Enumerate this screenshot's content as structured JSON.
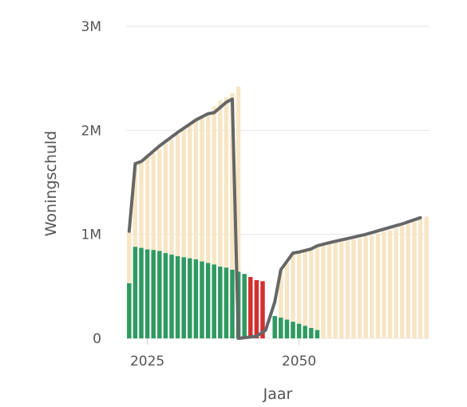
{
  "chart_data": {
    "type": "bar",
    "xlabel": "Jaar",
    "ylabel": "Woningschuld",
    "ylim": [
      0,
      3000000
    ],
    "xlim": [
      2021.5,
      2071.5
    ],
    "y_ticks": [
      {
        "value": 0,
        "label": "0"
      },
      {
        "value": 1000000,
        "label": "1M"
      },
      {
        "value": 2000000,
        "label": "2M"
      },
      {
        "value": 3000000,
        "label": "3M"
      }
    ],
    "x_ticks": [
      {
        "value": 2025,
        "label": "2025"
      },
      {
        "value": 2050,
        "label": "2050"
      }
    ],
    "grid": true,
    "legend": "none",
    "colors": {
      "background_bar": "#f7e6c6",
      "green": "#2e9a62",
      "red": "#d32f2f",
      "line": "#666666",
      "grid": "#e6e6e6"
    },
    "years": [
      2022,
      2023,
      2024,
      2025,
      2026,
      2027,
      2028,
      2029,
      2030,
      2031,
      2032,
      2033,
      2034,
      2035,
      2036,
      2037,
      2038,
      2039,
      2040,
      2041,
      2042,
      2043,
      2044,
      2045,
      2046,
      2047,
      2048,
      2049,
      2050,
      2051,
      2052,
      2053,
      2054,
      2055,
      2056,
      2057,
      2058,
      2059,
      2060,
      2061,
      2062,
      2063,
      2064,
      2065,
      2066,
      2067,
      2068,
      2069,
      2070,
      2071
    ],
    "series": [
      {
        "role": "background",
        "values": [
          1030000,
          1680000,
          1700000,
          1740000,
          1780000,
          1820000,
          1870000,
          1910000,
          1960000,
          2000000,
          2050000,
          2090000,
          2140000,
          2170000,
          2230000,
          2290000,
          2320000,
          2360000,
          2420000,
          0,
          0,
          0,
          0,
          0,
          0,
          650000,
          720000,
          820000,
          830000,
          840000,
          850000,
          880000,
          900000,
          910000,
          920000,
          930000,
          940000,
          950000,
          960000,
          980000,
          990000,
          1010000,
          1030000,
          1040000,
          1060000,
          1080000,
          1100000,
          1120000,
          1150000,
          1170000
        ]
      },
      {
        "role": "green",
        "values": [
          530000,
          880000,
          870000,
          855000,
          850000,
          840000,
          820000,
          805000,
          790000,
          780000,
          770000,
          760000,
          740000,
          725000,
          710000,
          690000,
          680000,
          660000,
          640000,
          620000,
          0,
          0,
          0,
          0,
          215000,
          200000,
          180000,
          160000,
          140000,
          120000,
          100000,
          80000,
          0,
          0,
          0,
          0,
          0,
          0,
          0,
          0,
          0,
          0,
          0,
          0,
          0,
          0,
          0,
          0,
          0,
          0
        ]
      },
      {
        "role": "red",
        "values": [
          0,
          0,
          0,
          0,
          0,
          0,
          0,
          0,
          0,
          0,
          0,
          0,
          0,
          0,
          0,
          0,
          0,
          0,
          0,
          0,
          590000,
          560000,
          550000,
          0,
          0,
          0,
          0,
          0,
          0,
          0,
          0,
          0,
          0,
          0,
          0,
          0,
          0,
          0,
          0,
          0,
          0,
          0,
          0,
          0,
          0,
          0,
          0,
          0,
          0,
          0
        ]
      }
    ],
    "line": {
      "points": [
        [
          2022.0,
          1030000
        ],
        [
          2023.0,
          1680000
        ],
        [
          2024.0,
          1700000
        ],
        [
          2027.0,
          1850000
        ],
        [
          2030.0,
          1980000
        ],
        [
          2033.0,
          2100000
        ],
        [
          2035.0,
          2160000
        ],
        [
          2036.0,
          2170000
        ],
        [
          2037.0,
          2220000
        ],
        [
          2038.0,
          2270000
        ],
        [
          2039.0,
          2300000
        ],
        [
          2040.0,
          0
        ],
        [
          2043.0,
          20000
        ],
        [
          2044.5,
          80000
        ],
        [
          2046.0,
          350000
        ],
        [
          2047.0,
          660000
        ],
        [
          2049.0,
          820000
        ],
        [
          2050.0,
          830000
        ],
        [
          2052.0,
          860000
        ],
        [
          2053.0,
          890000
        ],
        [
          2055.0,
          920000
        ],
        [
          2058.0,
          960000
        ],
        [
          2061.0,
          1000000
        ],
        [
          2064.0,
          1050000
        ],
        [
          2067.0,
          1100000
        ],
        [
          2070.0,
          1160000
        ]
      ]
    }
  }
}
